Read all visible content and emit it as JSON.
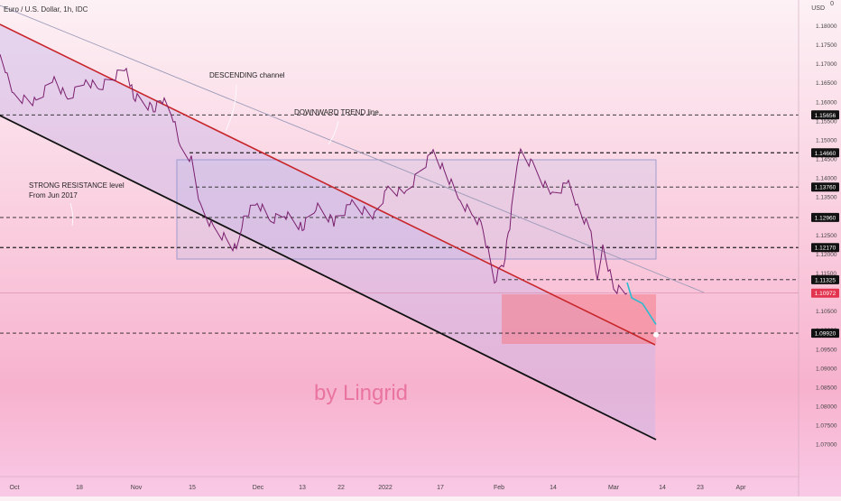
{
  "header": {
    "symbol": "Euro / U.S. Dollar, 1h, IDC",
    "currency": "USD",
    "currency_marker": "0"
  },
  "watermark": "by Lingrid",
  "colors": {
    "resistance_line": "#c8262a",
    "support_line": "#111111",
    "price": "#7a1f6e",
    "forecast": "#2bbbd0",
    "target_zone": "#f47c88",
    "current_badge": "#e3344f",
    "watermark": "#e8749f"
  },
  "chart_data": {
    "type": "line",
    "instrument": "EURUSD",
    "timeframe": "1h",
    "x_ticks": [
      "Oct",
      "18",
      "Nov",
      "15",
      "Dec",
      "13",
      "22",
      "2022",
      "17",
      "Feb",
      "14",
      "Mar",
      "14",
      "23",
      "Apr"
    ],
    "y_ticks": [
      "1.18000",
      "1.17500",
      "1.17000",
      "1.16500",
      "1.16000",
      "1.15500",
      "1.15000",
      "1.14500",
      "1.14000",
      "1.13500",
      "1.13000",
      "1.12500",
      "1.12000",
      "1.11500",
      "1.11000",
      "1.10500",
      "1.10000",
      "1.09500",
      "1.09000",
      "1.08500",
      "1.08000",
      "1.07500",
      "1.07000"
    ],
    "ylim": [
      1.0675,
      1.1875
    ],
    "levels": [
      {
        "value": 1.15656,
        "label": "1.15656"
      },
      {
        "value": 1.1466,
        "label": "1.14660"
      },
      {
        "value": 1.1376,
        "label": "1.13760"
      },
      {
        "value": 1.1296,
        "label": "1.12960"
      },
      {
        "value": 1.1217,
        "label": "1.12170"
      },
      {
        "value": 1.11325,
        "label": "1.11325"
      },
      {
        "value": 1.0992,
        "label": "1.09920"
      }
    ],
    "current_price": {
      "value": 1.10972,
      "label": "1.10972"
    },
    "annotations": [
      {
        "text": "DESCENDING channel"
      },
      {
        "text": "DOWNWARD TREND line"
      },
      {
        "text": "STRONG RESISTANCE level"
      },
      {
        "text": "From Jun 2017"
      }
    ],
    "price_path": [
      {
        "x": "Oct",
        "y": 1.1712
      },
      {
        "x": "Oct",
        "y": 1.1665
      },
      {
        "x": "Oct",
        "y": 1.1615
      },
      {
        "x": "18",
        "y": 1.1598
      },
      {
        "x": "18",
        "y": 1.1662
      },
      {
        "x": "18",
        "y": 1.1605
      },
      {
        "x": "18",
        "y": 1.1658
      },
      {
        "x": "Nov",
        "y": 1.1635
      },
      {
        "x": "Nov",
        "y": 1.1692
      },
      {
        "x": "Nov",
        "y": 1.1615
      },
      {
        "x": "Nov",
        "y": 1.1582
      },
      {
        "x": "Nov",
        "y": 1.1605
      },
      {
        "x": "Nov",
        "y": 1.156
      },
      {
        "x": "15",
        "y": 1.147
      },
      {
        "x": "15",
        "y": 1.1448
      },
      {
        "x": "15",
        "y": 1.1325
      },
      {
        "x": "15",
        "y": 1.1262
      },
      {
        "x": "15",
        "y": 1.124
      },
      {
        "x": "15",
        "y": 1.1212
      },
      {
        "x": "15",
        "y": 1.13
      },
      {
        "x": "Dec",
        "y": 1.1335
      },
      {
        "x": "Dec",
        "y": 1.129
      },
      {
        "x": "Dec",
        "y": 1.1305
      },
      {
        "x": "13",
        "y": 1.127
      },
      {
        "x": "13",
        "y": 1.1325
      },
      {
        "x": "22",
        "y": 1.1285
      },
      {
        "x": "22",
        "y": 1.133
      },
      {
        "x": "2022",
        "y": 1.13
      },
      {
        "x": "2022",
        "y": 1.137
      },
      {
        "x": "2022",
        "y": 1.136
      },
      {
        "x": "17",
        "y": 1.147
      },
      {
        "x": "17",
        "y": 1.142
      },
      {
        "x": "17",
        "y": 1.134
      },
      {
        "x": "17",
        "y": 1.13
      },
      {
        "x": "Feb",
        "y": 1.127
      },
      {
        "x": "Feb",
        "y": 1.113
      },
      {
        "x": "Feb",
        "y": 1.1175
      },
      {
        "x": "Feb",
        "y": 1.1275
      },
      {
        "x": "Feb",
        "y": 1.147
      },
      {
        "x": "14",
        "y": 1.1432
      },
      {
        "x": "14",
        "y": 1.1352
      },
      {
        "x": "14",
        "y": 1.1385
      },
      {
        "x": "14",
        "y": 1.1325
      },
      {
        "x": "Mar",
        "y": 1.1255
      },
      {
        "x": "Mar",
        "y": 1.113
      },
      {
        "x": "Mar",
        "y": 1.1225
      },
      {
        "x": "Mar",
        "y": 1.111
      },
      {
        "x": "Mar",
        "y": 1.1097
      }
    ],
    "forecast_path": [
      {
        "x": "Mar",
        "y": 1.1125
      },
      {
        "x": "Mar",
        "y": 1.1085
      },
      {
        "x": "Mar",
        "y": 1.107
      },
      {
        "x": "14",
        "y": 1.1015
      }
    ],
    "grid": false
  }
}
